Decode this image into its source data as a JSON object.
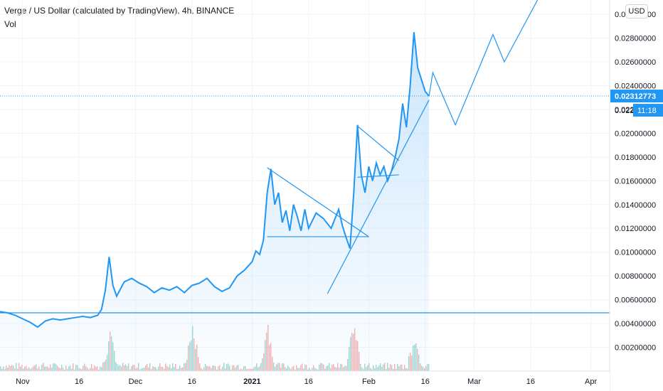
{
  "header": {
    "title": "Verge / US Dollar (calculated by TradingView), 4h, BINANCE",
    "indicator": "Vol",
    "currency_button": "USD"
  },
  "colors": {
    "line": "#2196f3",
    "fill": "#bbdefb",
    "grid": "#f0f3fa",
    "axis_text": "#131722",
    "price_tag": "#2196f3",
    "vol_up": "#80cbc4",
    "vol_down": "#ef9a9a"
  },
  "chart_data": {
    "type": "area",
    "title": "Verge / US Dollar (calculated by TradingView), 4h, BINANCE",
    "x_ticks": [
      {
        "date": "2020-11-01",
        "label": "Nov"
      },
      {
        "date": "2020-11-16",
        "label": "16"
      },
      {
        "date": "2020-12-01",
        "label": "Dec"
      },
      {
        "date": "2020-12-16",
        "label": "16"
      },
      {
        "date": "2021-01-01",
        "label": "2021"
      },
      {
        "date": "2021-01-16",
        "label": "16"
      },
      {
        "date": "2021-02-01",
        "label": "Feb"
      },
      {
        "date": "2021-02-16",
        "label": "16"
      },
      {
        "date": "2021-03-01",
        "label": "Mar"
      },
      {
        "date": "2021-03-16",
        "label": "16"
      },
      {
        "date": "2021-04-01",
        "label": "Apr"
      }
    ],
    "y_ticks": [
      "0.00200000",
      "0.00400000",
      "0.00600000",
      "0.00800000",
      "0.01000000",
      "0.01200000",
      "0.01400000",
      "0.01600000",
      "0.01800000",
      "0.02000000",
      "0.02200000",
      "0.02400000",
      "0.02600000",
      "0.02800000",
      "0.03000000"
    ],
    "ylim": [
      0.0,
      0.0312
    ],
    "grid": true,
    "current_price": {
      "value": 0.02312773,
      "label": "0.02312773",
      "countdown": "11:18",
      "occluded_tick": "0.022"
    },
    "series": [
      {
        "points": [
          [
            "2020-10-26",
            0.005
          ],
          [
            "2020-10-28",
            0.0049
          ],
          [
            "2020-10-30",
            0.0047
          ],
          [
            "2020-11-01",
            0.0044
          ],
          [
            "2020-11-03",
            0.0041
          ],
          [
            "2020-11-05",
            0.0037
          ],
          [
            "2020-11-07",
            0.0042
          ],
          [
            "2020-11-09",
            0.0044
          ],
          [
            "2020-11-11",
            0.0043
          ],
          [
            "2020-11-13",
            0.0044
          ],
          [
            "2020-11-15",
            0.0045
          ],
          [
            "2020-11-17",
            0.0046
          ],
          [
            "2020-11-19",
            0.0045
          ],
          [
            "2020-11-21",
            0.0047
          ],
          [
            "2020-11-22",
            0.0052
          ],
          [
            "2020-11-23",
            0.0068
          ],
          [
            "2020-11-24",
            0.0096
          ],
          [
            "2020-11-25",
            0.0072
          ],
          [
            "2020-11-26",
            0.0063
          ],
          [
            "2020-11-28",
            0.0075
          ],
          [
            "2020-11-30",
            0.0078
          ],
          [
            "2020-12-02",
            0.0074
          ],
          [
            "2020-12-04",
            0.0071
          ],
          [
            "2020-12-06",
            0.0066
          ],
          [
            "2020-12-08",
            0.007
          ],
          [
            "2020-12-10",
            0.0068
          ],
          [
            "2020-12-12",
            0.0071
          ],
          [
            "2020-12-14",
            0.0066
          ],
          [
            "2020-12-16",
            0.0072
          ],
          [
            "2020-12-18",
            0.0074
          ],
          [
            "2020-12-20",
            0.0078
          ],
          [
            "2020-12-22",
            0.0071
          ],
          [
            "2020-12-24",
            0.0067
          ],
          [
            "2020-12-26",
            0.007
          ],
          [
            "2020-12-28",
            0.008
          ],
          [
            "2020-12-30",
            0.0085
          ],
          [
            "2021-01-01",
            0.0092
          ],
          [
            "2021-01-02",
            0.0101
          ],
          [
            "2021-01-03",
            0.0098
          ],
          [
            "2021-01-04",
            0.011
          ],
          [
            "2021-01-05",
            0.015
          ],
          [
            "2021-01-06",
            0.017
          ],
          [
            "2021-01-07",
            0.014
          ],
          [
            "2021-01-08",
            0.015
          ],
          [
            "2021-01-09",
            0.0125
          ],
          [
            "2021-01-10",
            0.0135
          ],
          [
            "2021-01-11",
            0.0118
          ],
          [
            "2021-01-12",
            0.014
          ],
          [
            "2021-01-13",
            0.013
          ],
          [
            "2021-01-14",
            0.0118
          ],
          [
            "2021-01-15",
            0.0136
          ],
          [
            "2021-01-16",
            0.012
          ],
          [
            "2021-01-18",
            0.0133
          ],
          [
            "2021-01-20",
            0.0128
          ],
          [
            "2021-01-22",
            0.012
          ],
          [
            "2021-01-24",
            0.0136
          ],
          [
            "2021-01-25",
            0.0122
          ],
          [
            "2021-01-26",
            0.0112
          ],
          [
            "2021-01-27",
            0.0103
          ],
          [
            "2021-01-28",
            0.015
          ],
          [
            "2021-01-29",
            0.0207
          ],
          [
            "2021-01-30",
            0.0165
          ],
          [
            "2021-01-31",
            0.015
          ],
          [
            "2021-02-01",
            0.0172
          ],
          [
            "2021-02-02",
            0.016
          ],
          [
            "2021-02-03",
            0.0175
          ],
          [
            "2021-02-04",
            0.0165
          ],
          [
            "2021-02-05",
            0.0172
          ],
          [
            "2021-02-06",
            0.016
          ],
          [
            "2021-02-07",
            0.0168
          ],
          [
            "2021-02-08",
            0.018
          ],
          [
            "2021-02-09",
            0.0195
          ],
          [
            "2021-02-10",
            0.0225
          ],
          [
            "2021-02-11",
            0.0205
          ],
          [
            "2021-02-12",
            0.024
          ],
          [
            "2021-02-13",
            0.0285
          ],
          [
            "2021-02-14",
            0.0255
          ],
          [
            "2021-02-15",
            0.0245
          ],
          [
            "2021-02-16",
            0.0235
          ],
          [
            "2021-02-17",
            0.02312773
          ]
        ]
      }
    ],
    "projection": [
      [
        "2021-02-18",
        0.0251
      ],
      [
        "2021-02-24",
        0.0207
      ],
      [
        "2021-03-06",
        0.0283
      ],
      [
        "2021-03-09",
        0.026
      ],
      [
        "2021-03-18",
        0.0313
      ]
    ],
    "annotations": [
      {
        "type": "trendline",
        "points": [
          [
            "2021-01-05",
            0.0171
          ],
          [
            "2021-02-01",
            0.0113
          ]
        ]
      },
      {
        "type": "trendline",
        "points": [
          [
            "2021-01-05",
            0.0113
          ],
          [
            "2021-02-01",
            0.0113
          ]
        ]
      },
      {
        "type": "trendline",
        "points": [
          [
            "2021-01-29",
            0.0206
          ],
          [
            "2021-02-09",
            0.0177
          ]
        ]
      },
      {
        "type": "trendline",
        "points": [
          [
            "2021-01-29",
            0.0163
          ],
          [
            "2021-02-09",
            0.0165
          ]
        ]
      },
      {
        "type": "trendline",
        "points": [
          [
            "2021-01-21",
            0.0065
          ],
          [
            "2021-02-17",
            0.0228
          ]
        ]
      },
      {
        "type": "trendline",
        "points": [
          [
            "2020-10-26",
            0.0049
          ],
          [
            "2021-04-06",
            0.0049
          ]
        ]
      }
    ],
    "volume": {
      "max_height_fraction": 0.36,
      "spikes": [
        [
          "2020-11-24",
          0.6
        ],
        [
          "2020-12-16",
          0.7
        ],
        [
          "2021-01-05",
          0.65
        ],
        [
          "2021-01-28",
          1.0
        ],
        [
          "2021-02-13",
          0.6
        ]
      ]
    }
  }
}
